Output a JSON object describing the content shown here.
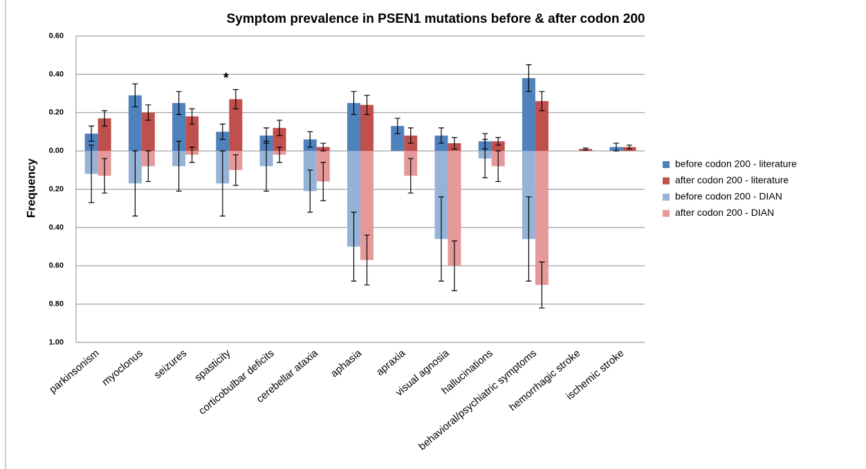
{
  "chart_data": {
    "type": "bar",
    "title": "Symptom prevalence in PSEN1 mutations before & after codon 200",
    "y_label": "Frequency",
    "categories": [
      "parkinsonism",
      "myoclonus",
      "seizures",
      "spasticity",
      "corticobulbar deficits",
      "cerebellar ataxia",
      "aphasia",
      "apraxia",
      "visual agnosia",
      "hallucinations",
      "behavioral/psychiatric symptoms",
      "hemorrhagic stroke",
      "ischemic stroke"
    ],
    "series": [
      {
        "name": "before codon 200 - literature",
        "color": "#4f81bd",
        "group": "before",
        "values": [
          0.09,
          0.29,
          0.25,
          0.1,
          0.08,
          0.06,
          0.25,
          0.13,
          0.08,
          0.05,
          0.38,
          0.0,
          0.02
        ],
        "errors": [
          0.04,
          0.06,
          0.06,
          0.04,
          0.04,
          0.04,
          0.06,
          0.04,
          0.04,
          0.04,
          0.07,
          0.0,
          0.02
        ]
      },
      {
        "name": "after codon 200 - literature",
        "color": "#c0504d",
        "group": "after",
        "values": [
          0.17,
          0.2,
          0.18,
          0.27,
          0.12,
          0.02,
          0.24,
          0.08,
          0.04,
          0.05,
          0.26,
          0.01,
          0.02
        ],
        "errors": [
          0.04,
          0.04,
          0.04,
          0.05,
          0.04,
          0.02,
          0.05,
          0.04,
          0.03,
          0.02,
          0.05,
          0.005,
          0.01
        ]
      },
      {
        "name": "before codon 200 - DIAN",
        "color": "#95b3d7",
        "group": "before",
        "values": [
          -0.12,
          -0.17,
          -0.08,
          -0.17,
          -0.08,
          -0.21,
          -0.5,
          0,
          -0.46,
          -0.04,
          -0.46,
          0,
          0
        ],
        "errors": [
          0.15,
          0.17,
          0.13,
          0.17,
          0.13,
          0.11,
          0.18,
          0,
          0.22,
          0.1,
          0.22,
          0,
          0
        ]
      },
      {
        "name": "after codon 200 - DIAN",
        "color": "#e6999a",
        "group": "after",
        "values": [
          -0.13,
          -0.08,
          -0.02,
          -0.1,
          -0.02,
          -0.16,
          -0.57,
          -0.13,
          -0.6,
          -0.08,
          -0.7,
          0,
          0
        ],
        "errors": [
          0.09,
          0.08,
          0.04,
          0.08,
          0.04,
          0.1,
          0.13,
          0.09,
          0.13,
          0.08,
          0.12,
          0,
          0
        ]
      }
    ],
    "annotations": [
      {
        "text": "*",
        "category": "spasticity",
        "series": "after codon 200 - literature"
      }
    ],
    "ylim": [
      -1.0,
      0.6
    ],
    "yticks": [
      {
        "value": 0.6,
        "label": "0.60"
      },
      {
        "value": 0.4,
        "label": "0.40"
      },
      {
        "value": 0.2,
        "label": "0.20"
      },
      {
        "value": 0,
        "label": "0.00"
      },
      {
        "value": -0.2,
        "label": "0.20"
      },
      {
        "value": -0.4,
        "label": "0.40"
      },
      {
        "value": -0.6,
        "label": "0.60"
      },
      {
        "value": -0.8,
        "label": "0.80"
      },
      {
        "value": -1.0,
        "label": "1.00"
      }
    ],
    "grid": true,
    "legend": "right"
  }
}
